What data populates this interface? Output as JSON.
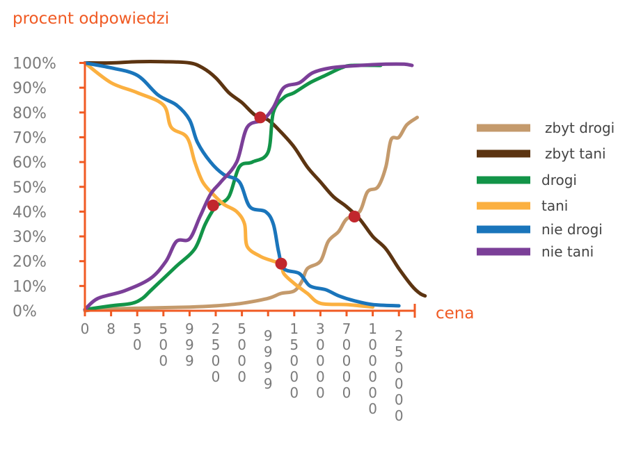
{
  "chart_data": {
    "type": "line",
    "ylabel": "procent odpowiedzi",
    "xlabel": "cena",
    "ylim": [
      0,
      100
    ],
    "yticks": [
      "0%",
      "10%",
      "20%",
      "30%",
      "40%",
      "50%",
      "60%",
      "70%",
      "80%",
      "90%",
      "100%"
    ],
    "xticks": [
      "0",
      "8",
      "50",
      "500",
      "999",
      "2500",
      "5000",
      "9999",
      "15000",
      "30000",
      "70000",
      "100000",
      "250000"
    ],
    "legend_position": "right",
    "series": [
      {
        "name": "zbyt drogi",
        "color": "#c49a6c",
        "values": [
          [
            0,
            0
          ],
          [
            0.5,
            0.5
          ],
          [
            2,
            1
          ],
          [
            4,
            1.5
          ],
          [
            5,
            2
          ],
          [
            6,
            3
          ],
          [
            7,
            5
          ],
          [
            7.5,
            7
          ],
          [
            8,
            8
          ],
          [
            8.3,
            12
          ],
          [
            8.5,
            17
          ],
          [
            9,
            20
          ],
          [
            9.3,
            28
          ],
          [
            9.7,
            32
          ],
          [
            10,
            37
          ],
          [
            10.5,
            40
          ],
          [
            10.8,
            48
          ],
          [
            11.2,
            50
          ],
          [
            11.5,
            58
          ],
          [
            11.7,
            69
          ],
          [
            12,
            70
          ],
          [
            12.3,
            75
          ],
          [
            12.7,
            78
          ]
        ]
      },
      {
        "name": "zbyt tani",
        "color": "#5c3411",
        "values": [
          [
            0,
            100
          ],
          [
            1,
            100
          ],
          [
            2,
            100.5
          ],
          [
            3,
            100.5
          ],
          [
            4,
            100
          ],
          [
            4.5,
            98
          ],
          [
            5,
            94
          ],
          [
            5.5,
            88
          ],
          [
            6,
            84
          ],
          [
            6.5,
            79
          ],
          [
            7,
            77
          ],
          [
            7.5,
            72
          ],
          [
            8,
            66
          ],
          [
            8.5,
            58
          ],
          [
            9,
            52
          ],
          [
            9.5,
            46
          ],
          [
            10,
            42
          ],
          [
            10.5,
            37
          ],
          [
            11,
            30
          ],
          [
            11.5,
            25
          ],
          [
            12,
            17
          ],
          [
            12.5,
            10
          ],
          [
            12.8,
            7
          ],
          [
            13,
            6
          ]
        ]
      },
      {
        "name": "drogi",
        "color": "#129448",
        "values": [
          [
            0,
            0.5
          ],
          [
            1,
            2
          ],
          [
            1.8,
            3
          ],
          [
            2.2,
            5
          ],
          [
            2.5,
            8
          ],
          [
            3,
            13
          ],
          [
            3.5,
            18
          ],
          [
            4.2,
            25
          ],
          [
            4.6,
            35
          ],
          [
            5,
            42
          ],
          [
            5.5,
            46
          ],
          [
            5.9,
            58
          ],
          [
            6.4,
            60
          ],
          [
            7,
            64
          ],
          [
            7.2,
            80
          ],
          [
            7.6,
            86
          ],
          [
            8,
            88
          ],
          [
            8.6,
            92
          ],
          [
            9.2,
            95
          ],
          [
            9.8,
            98
          ],
          [
            10.2,
            99
          ],
          [
            11.3,
            99
          ]
        ]
      },
      {
        "name": "tani",
        "color": "#fbb040",
        "values": [
          [
            0,
            100
          ],
          [
            1,
            92
          ],
          [
            2,
            88
          ],
          [
            3,
            83
          ],
          [
            3.3,
            74
          ],
          [
            3.9,
            70
          ],
          [
            4.2,
            60
          ],
          [
            4.5,
            52
          ],
          [
            4.9,
            47
          ],
          [
            5.3,
            43
          ],
          [
            5.8,
            40
          ],
          [
            6.1,
            35
          ],
          [
            6.2,
            26
          ],
          [
            6.7,
            22
          ],
          [
            7.2,
            20
          ],
          [
            7.5,
            19
          ],
          [
            7.6,
            15
          ],
          [
            8,
            11
          ],
          [
            8.5,
            7
          ],
          [
            9,
            3
          ],
          [
            10,
            2.5
          ],
          [
            11,
            1.5
          ]
        ]
      },
      {
        "name": "nie drogi",
        "color": "#1a75bb",
        "values": [
          [
            0,
            100
          ],
          [
            1,
            98
          ],
          [
            2,
            95
          ],
          [
            2.8,
            87
          ],
          [
            3.5,
            83
          ],
          [
            4,
            77
          ],
          [
            4.3,
            68
          ],
          [
            4.8,
            60
          ],
          [
            5.3,
            55
          ],
          [
            5.9,
            52
          ],
          [
            6.3,
            42
          ],
          [
            6.9,
            40
          ],
          [
            7.2,
            35
          ],
          [
            7.4,
            24
          ],
          [
            7.6,
            17
          ],
          [
            8.2,
            15
          ],
          [
            8.6,
            10
          ],
          [
            9.2,
            8.5
          ],
          [
            9.7,
            6
          ],
          [
            10.3,
            4
          ],
          [
            11,
            2.5
          ],
          [
            12,
            2
          ]
        ]
      },
      {
        "name": "nie tani",
        "color": "#7b3f98",
        "values": [
          [
            0,
            0.5
          ],
          [
            0.5,
            5
          ],
          [
            1.5,
            8
          ],
          [
            2.5,
            13
          ],
          [
            3.1,
            20
          ],
          [
            3.5,
            28
          ],
          [
            4,
            29
          ],
          [
            4.4,
            38
          ],
          [
            4.8,
            47
          ],
          [
            5.2,
            52
          ],
          [
            5.8,
            60
          ],
          [
            6.2,
            74
          ],
          [
            6.8,
            77
          ],
          [
            7.2,
            82
          ],
          [
            7.6,
            90
          ],
          [
            8.2,
            92
          ],
          [
            8.7,
            96
          ],
          [
            9.4,
            98
          ],
          [
            10.5,
            99
          ],
          [
            11.5,
            99.5
          ],
          [
            12.2,
            99.5
          ],
          [
            12.5,
            99
          ]
        ]
      }
    ],
    "intersections": [
      [
        4.9,
        42.5
      ],
      [
        6.7,
        78
      ],
      [
        7.5,
        19
      ],
      [
        10.3,
        38
      ]
    ]
  }
}
